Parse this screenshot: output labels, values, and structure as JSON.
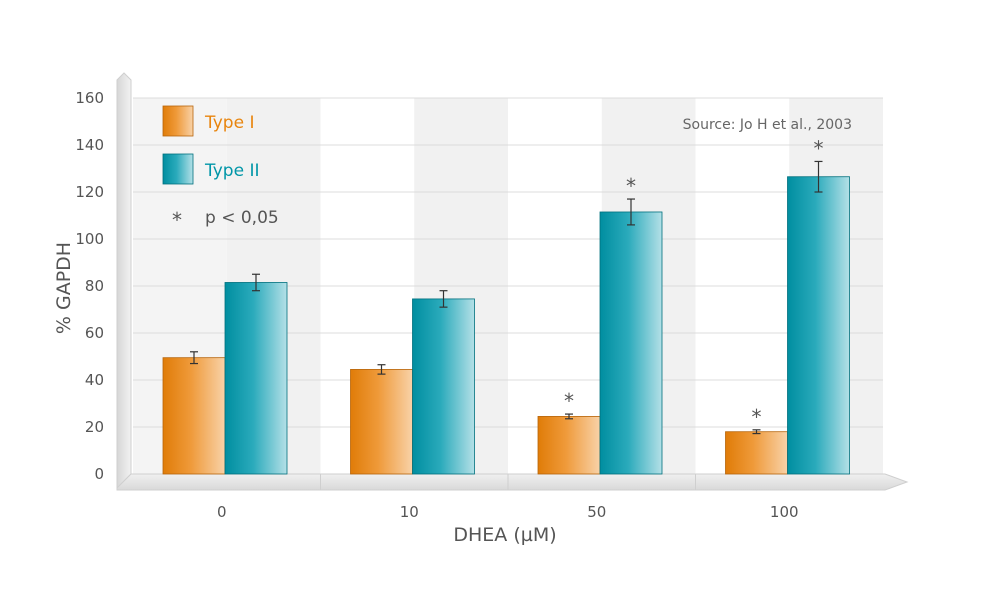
{
  "chart_data": {
    "type": "bar",
    "xlabel": "DHEA (µM)",
    "ylabel": "% GAPDH",
    "ylim": [
      0,
      160
    ],
    "yticks": [
      0,
      20,
      40,
      60,
      80,
      100,
      120,
      140,
      160
    ],
    "categories": [
      "0",
      "10",
      "50",
      "100"
    ],
    "series": [
      {
        "name": "Type I",
        "color": "#e8850e",
        "values": [
          49.5,
          44.5,
          24.5,
          18
        ],
        "errors": [
          2.5,
          2,
          1,
          0.8
        ],
        "significant": [
          false,
          false,
          true,
          true
        ]
      },
      {
        "name": "Type II",
        "color": "#0096a8",
        "values": [
          81.5,
          74.5,
          111.5,
          126.5
        ],
        "errors": [
          3.5,
          3.5,
          5.5,
          6.5
        ],
        "significant": [
          false,
          false,
          true,
          true
        ]
      }
    ],
    "legend": {
      "position": "top-left",
      "sig_marker": "*",
      "sig_label": "p < 0,05"
    },
    "source": "Source: Jo H et al., 2003",
    "grid": true
  }
}
